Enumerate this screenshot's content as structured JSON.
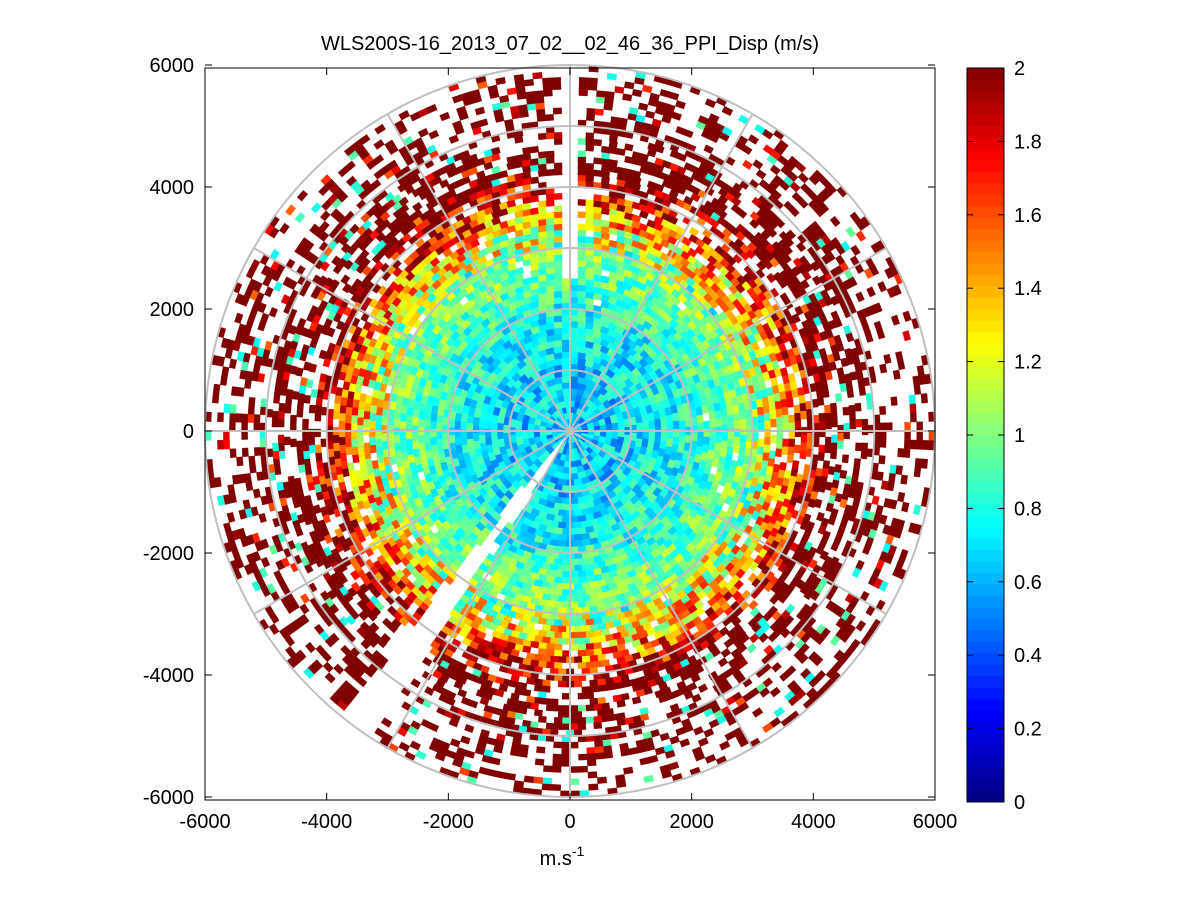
{
  "chart_data": {
    "type": "heatmap",
    "subtype": "polar-ppi",
    "title": "WLS200S-16_2013_07_02__02_46_36_PPI_Disp (m/s)",
    "xlabel_base": "m.s",
    "xlabel_sup": "-1",
    "ylabel": "",
    "xlim": [
      -6000,
      6000
    ],
    "ylim": [
      -6000,
      6000
    ],
    "xticks": [
      -6000,
      -4000,
      -2000,
      0,
      2000,
      4000,
      6000
    ],
    "yticks": [
      -6000,
      -4000,
      -2000,
      0,
      2000,
      4000,
      6000
    ],
    "xtick_labels": [
      "-6000",
      "-4000",
      "-2000",
      "0",
      "2000",
      "4000",
      "6000"
    ],
    "ytick_labels": [
      "-6000",
      "-4000",
      "-2000",
      "0",
      "2000",
      "4000",
      "6000"
    ],
    "max_range_m": 6000,
    "range_rings_m": [
      1000,
      2000,
      3000,
      4000,
      5000,
      6000
    ],
    "spoke_angles_deg": [
      0,
      30,
      60,
      90,
      120,
      150,
      180,
      210,
      240,
      270,
      300,
      330
    ],
    "colorbar": {
      "min": 0,
      "max": 2,
      "ticks": [
        0,
        0.2,
        0.4,
        0.6,
        0.8,
        1,
        1.2,
        1.4,
        1.6,
        1.8,
        2
      ],
      "tick_labels": [
        "0",
        "0.2",
        "0.4",
        "0.6",
        "0.8",
        "1",
        "1.2",
        "1.4",
        "1.6",
        "1.8",
        "2"
      ],
      "colormap": "jet"
    },
    "data_profile": {
      "description_of_values": "Velocity dispersion (m/s) by range: low near center, rising with range, saturated at outer ring",
      "range_m": [
        0,
        1000,
        2000,
        3000,
        3500,
        4000,
        5000,
        6000
      ],
      "typical_value": [
        0.65,
        0.68,
        0.8,
        1.05,
        1.35,
        1.9,
        2.0,
        2.0
      ],
      "coverage": [
        1.0,
        1.0,
        1.0,
        0.97,
        0.9,
        0.75,
        0.5,
        0.3
      ],
      "blocked_sectors_deg": [
        [
          -1.5,
          1.5
        ],
        [
          213,
          219
        ]
      ]
    }
  }
}
